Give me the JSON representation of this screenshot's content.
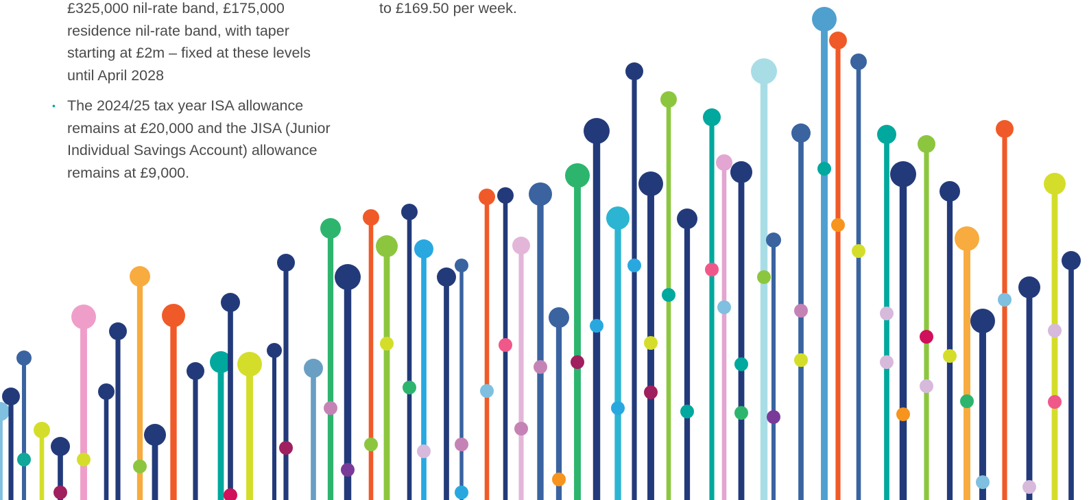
{
  "column_left": {
    "continued_lines": [
      "£325,000 nil-rate band, £175,000",
      "residence nil-rate band, with taper",
      "starting at £2m – fixed at these levels",
      "until April 2028"
    ],
    "items": [
      {
        "lines": [
          "The 2024/25 tax year ISA allowance",
          "remains at £20,000 and the JISA (Junior",
          "Individual Savings Account) allowance",
          "remains at £9,000."
        ]
      }
    ]
  },
  "column_right": {
    "continued_lines": [
      "to £169.50 per week."
    ]
  }
}
